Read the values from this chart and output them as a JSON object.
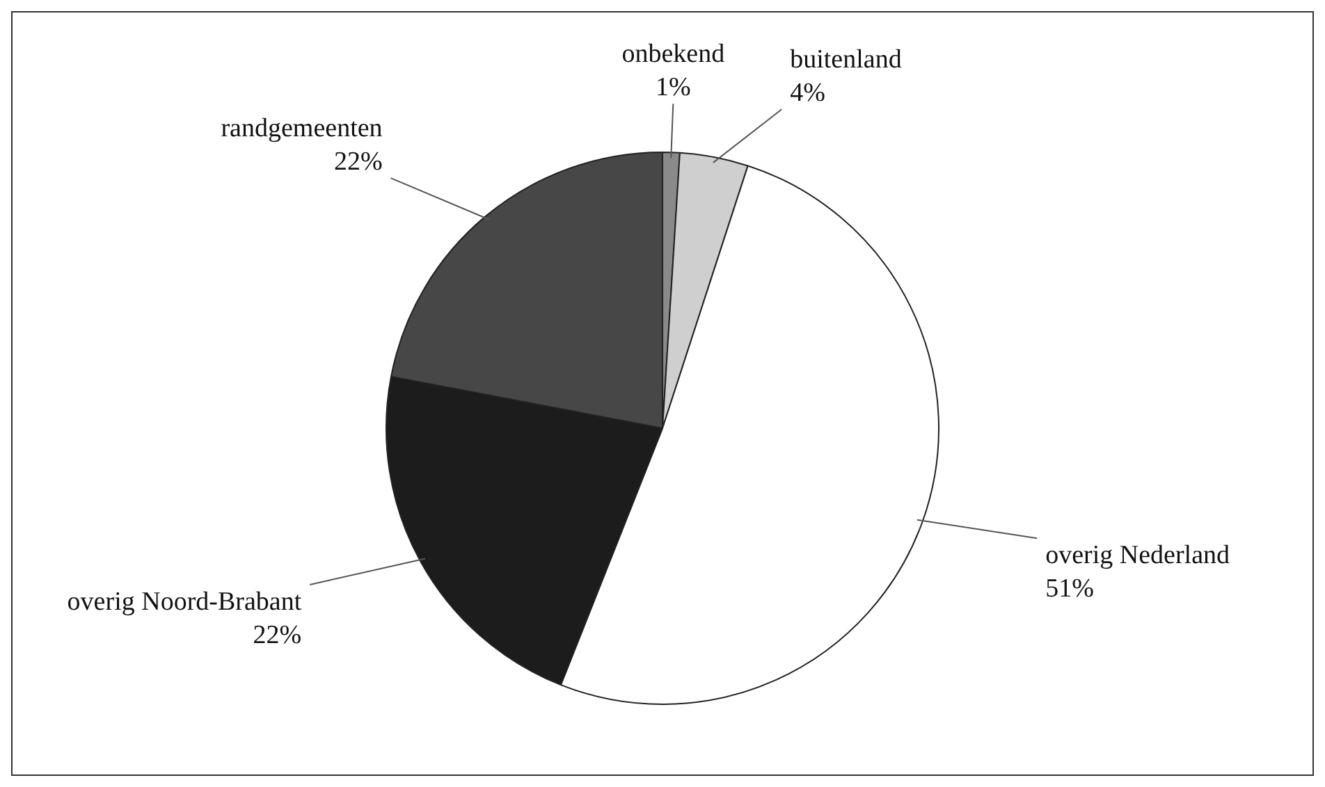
{
  "chart_data": {
    "type": "pie",
    "categories": [
      "onbekend",
      "buitenland",
      "overig Nederland",
      "overig Noord-Brabant",
      "randgemeenten"
    ],
    "values": [
      1,
      4,
      51,
      22,
      22
    ],
    "colors": [
      "#8a8a8a",
      "#cfcfcf",
      "#ffffff",
      "#1c1c1c",
      "#474747"
    ],
    "value_labels": [
      "1%",
      "4%",
      "51%",
      "22%",
      "22%"
    ],
    "legend": false
  }
}
